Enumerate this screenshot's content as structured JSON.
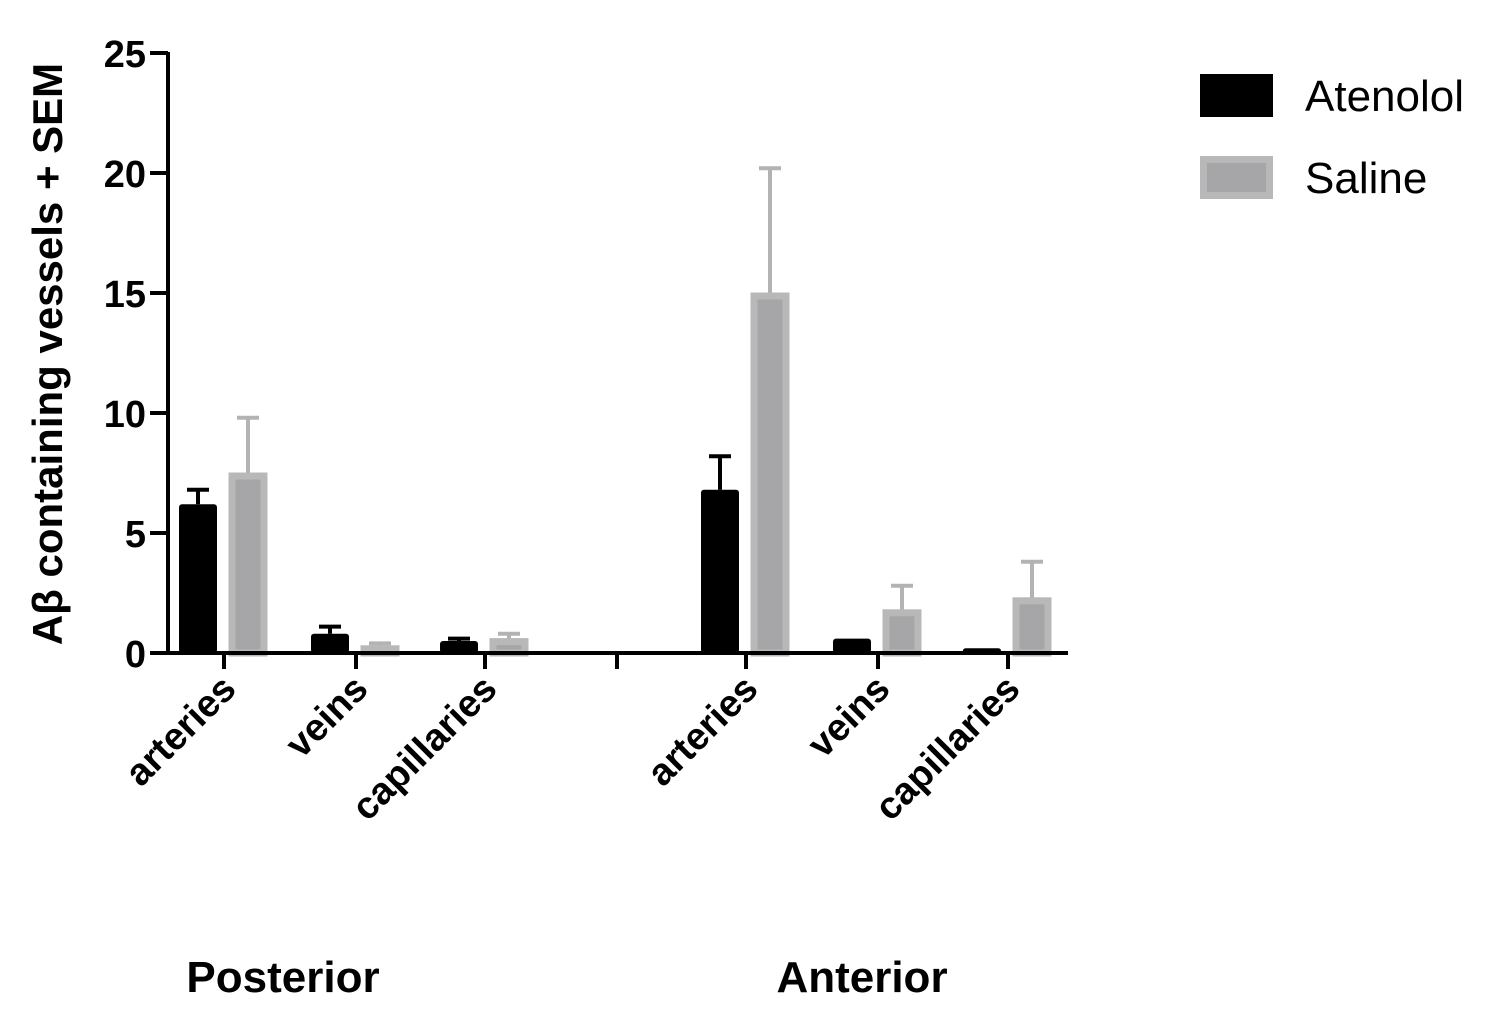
{
  "chart_data": {
    "type": "bar",
    "ylabel": "Aβ containing vessels + SEM",
    "ylim": [
      0,
      25
    ],
    "yticks": [
      0,
      5,
      10,
      15,
      20,
      25
    ],
    "grid": false,
    "legend_position": "top-right",
    "groups": [
      {
        "label": "Posterior",
        "categories": [
          "arteries",
          "veins",
          "capillaries"
        ]
      },
      {
        "label": "Anterior",
        "categories": [
          "arteries",
          "veins",
          "capillaries"
        ]
      }
    ],
    "series": [
      {
        "name": "Atenolol",
        "color": "#000000",
        "values": [
          6.2,
          0.8,
          0.5,
          6.8,
          0.6,
          0.2
        ],
        "errors": [
          0.6,
          0.3,
          0.1,
          1.4,
          0.0,
          0.0
        ]
      },
      {
        "name": "Saline",
        "color": "#a6a6a8",
        "edge_color": "#b8b8b8",
        "values": [
          7.5,
          0.3,
          0.6,
          15.0,
          1.8,
          2.3
        ],
        "errors": [
          2.3,
          0.1,
          0.2,
          5.2,
          1.0,
          1.5
        ]
      }
    ]
  }
}
